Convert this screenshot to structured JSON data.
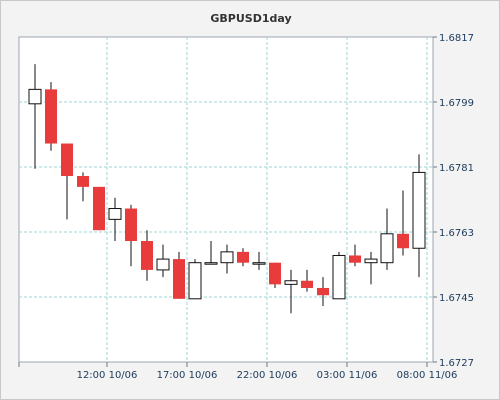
{
  "chart_data": {
    "type": "candlestick",
    "title": "GBPUSD1day",
    "xlabel": "",
    "ylabel": "",
    "ylim": [
      1.6727,
      1.6817
    ],
    "y_ticks": [
      "1.6817",
      "1.6799",
      "1.6781",
      "1.6763",
      "1.6745",
      "1.6727"
    ],
    "x_ticks": [
      {
        "index": 4.5,
        "label": "12:00 10/06"
      },
      {
        "index": 9.5,
        "label": "17:00 10/06"
      },
      {
        "index": 14.5,
        "label": "22:00 10/06"
      },
      {
        "index": 19.5,
        "label": "03:00 11/06"
      },
      {
        "index": 24.5,
        "label": "08:00 11/06"
      }
    ],
    "grid": true,
    "up_color": "#ffffff",
    "down_color": "#e83c3c",
    "candles": [
      {
        "o": 1.67985,
        "h": 1.68095,
        "l": 1.67805,
        "c": 1.68025
      },
      {
        "o": 1.68025,
        "h": 1.68045,
        "l": 1.67855,
        "c": 1.67875
      },
      {
        "o": 1.67875,
        "h": 1.67875,
        "l": 1.67665,
        "c": 1.67785
      },
      {
        "o": 1.67785,
        "h": 1.67795,
        "l": 1.67715,
        "c": 1.67755
      },
      {
        "o": 1.67755,
        "h": 1.67755,
        "l": 1.67635,
        "c": 1.67635
      },
      {
        "o": 1.67665,
        "h": 1.67725,
        "l": 1.67605,
        "c": 1.67695
      },
      {
        "o": 1.67695,
        "h": 1.67705,
        "l": 1.67535,
        "c": 1.67605
      },
      {
        "o": 1.67605,
        "h": 1.67635,
        "l": 1.67495,
        "c": 1.67525
      },
      {
        "o": 1.67525,
        "h": 1.67595,
        "l": 1.67505,
        "c": 1.67555
      },
      {
        "o": 1.67555,
        "h": 1.67575,
        "l": 1.67445,
        "c": 1.67445
      },
      {
        "o": 1.67445,
        "h": 1.67555,
        "l": 1.67445,
        "c": 1.67545
      },
      {
        "o": 1.67545,
        "h": 1.67605,
        "l": 1.67545,
        "c": 1.67545
      },
      {
        "o": 1.67545,
        "h": 1.67595,
        "l": 1.67515,
        "c": 1.67575
      },
      {
        "o": 1.67575,
        "h": 1.67585,
        "l": 1.67535,
        "c": 1.67545
      },
      {
        "o": 1.67545,
        "h": 1.67575,
        "l": 1.67525,
        "c": 1.67545
      },
      {
        "o": 1.67545,
        "h": 1.67545,
        "l": 1.67475,
        "c": 1.67485
      },
      {
        "o": 1.67485,
        "h": 1.67525,
        "l": 1.67405,
        "c": 1.67495
      },
      {
        "o": 1.67495,
        "h": 1.67525,
        "l": 1.67465,
        "c": 1.67475
      },
      {
        "o": 1.67475,
        "h": 1.67505,
        "l": 1.67425,
        "c": 1.67455
      },
      {
        "o": 1.67445,
        "h": 1.67575,
        "l": 1.67445,
        "c": 1.67565
      },
      {
        "o": 1.67565,
        "h": 1.67595,
        "l": 1.67535,
        "c": 1.67545
      },
      {
        "o": 1.67545,
        "h": 1.67575,
        "l": 1.67485,
        "c": 1.67555
      },
      {
        "o": 1.67545,
        "h": 1.67695,
        "l": 1.67525,
        "c": 1.67625
      },
      {
        "o": 1.67625,
        "h": 1.67745,
        "l": 1.67565,
        "c": 1.67585
      },
      {
        "o": 1.67585,
        "h": 1.67845,
        "l": 1.67505,
        "c": 1.67795
      }
    ]
  }
}
